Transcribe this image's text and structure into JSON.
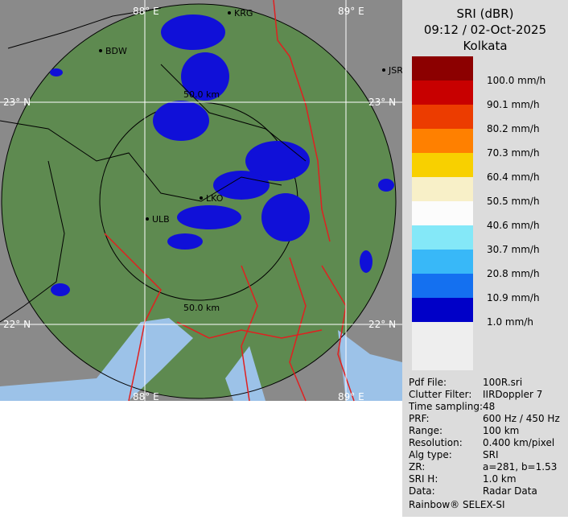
{
  "map_labels": {
    "lon_top_left": "88° E",
    "lon_top_right": "89° E",
    "lon_bottom_left": "88° E",
    "lon_bottom_right": "89° E",
    "lat_top_left": "23° N",
    "lat_top_right": "23° N",
    "lat_bottom_left": "22° N",
    "lat_bottom_right": "22° N",
    "ring_outer": "50.0 km",
    "ring_inner": "50.0 km",
    "places": [
      "KRG",
      "BDW",
      "JSR",
      "LKO",
      "ULB"
    ]
  },
  "header": {
    "product": "SRI (dBR)",
    "time": "09:12 / 02-Oct-2025",
    "site": "Kolkata"
  },
  "legend": [
    {
      "label": "100.0 mm/h",
      "color": "#8c0000"
    },
    {
      "label": "90.1 mm/h",
      "color": "#c80000"
    },
    {
      "label": "80.2 mm/h",
      "color": "#ec3c00"
    },
    {
      "label": "70.3 mm/h",
      "color": "#ff8000"
    },
    {
      "label": "60.4 mm/h",
      "color": "#f8d000"
    },
    {
      "label": "50.5 mm/h",
      "color": "#f8f0c8"
    },
    {
      "label": "40.6 mm/h",
      "color": "#fcfcfc"
    },
    {
      "label": "30.7 mm/h",
      "color": "#84e8f8"
    },
    {
      "label": "20.8 mm/h",
      "color": "#38b8f8"
    },
    {
      "label": "10.9 mm/h",
      "color": "#1470f0"
    },
    {
      "label": "1.0 mm/h",
      "color": "#0000c8"
    }
  ],
  "info": [
    [
      "Pdf File:",
      "100R.sri"
    ],
    [
      "Clutter Filter:",
      "IIRDoppler 7"
    ],
    [
      "Time sampling:",
      "48"
    ],
    [
      "PRF:",
      "600 Hz / 450 Hz"
    ],
    [
      "Range:",
      "100 km"
    ],
    [
      "Resolution:",
      "0.400 km/pixel"
    ],
    [
      "Alg type:",
      "SRI"
    ],
    [
      "ZR:",
      "a=281, b=1.53"
    ],
    [
      "SRI H:",
      "1.0 km"
    ],
    [
      "Data:",
      "Radar Data"
    ]
  ],
  "footer": "Rainbow® SELEX-SI"
}
